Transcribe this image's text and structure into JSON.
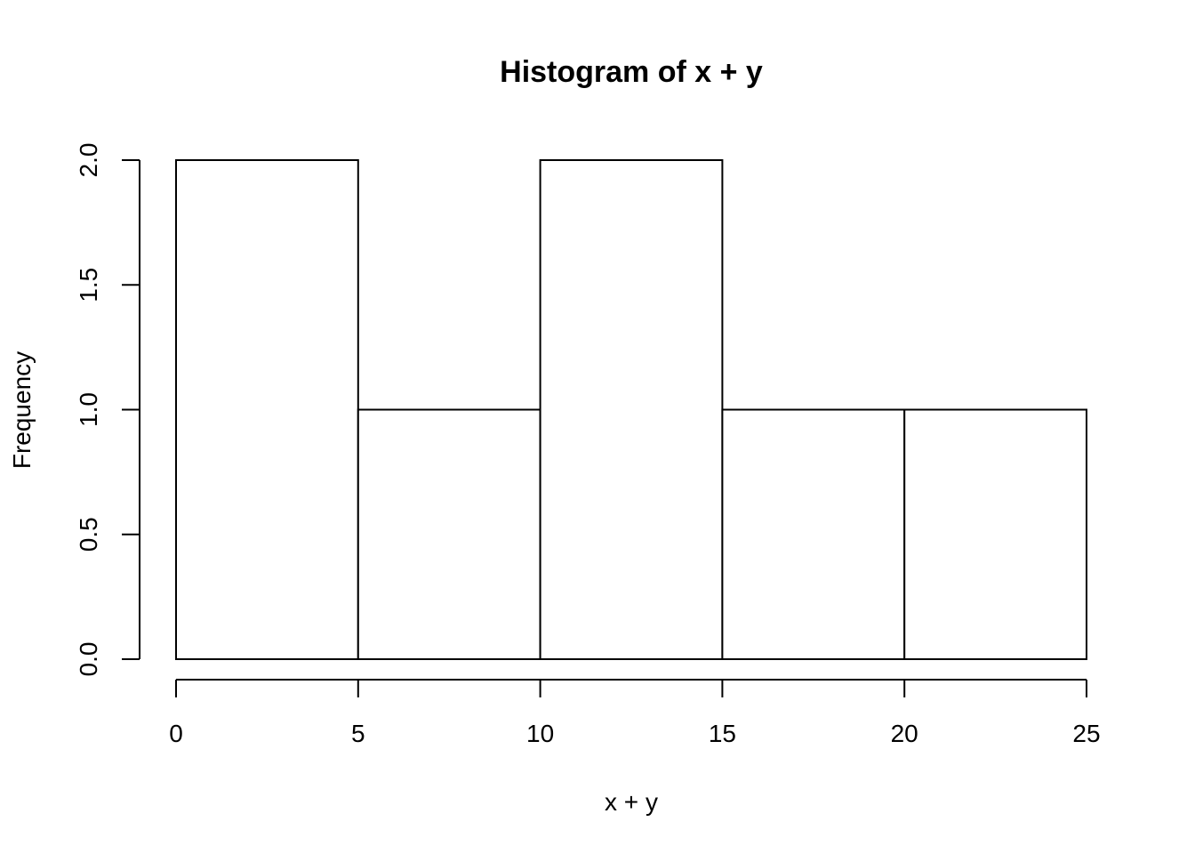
{
  "chart_data": {
    "type": "bar",
    "title": "Histogram of x + y",
    "xlabel": "x + y",
    "ylabel": "Frequency",
    "bins": [
      {
        "start": 0,
        "end": 5,
        "count": 2
      },
      {
        "start": 5,
        "end": 10,
        "count": 1
      },
      {
        "start": 10,
        "end": 15,
        "count": 2
      },
      {
        "start": 15,
        "end": 20,
        "count": 1
      },
      {
        "start": 20,
        "end": 25,
        "count": 1
      }
    ],
    "xlim": [
      0,
      25
    ],
    "ylim": [
      0,
      2
    ],
    "x_ticks": [
      0,
      5,
      10,
      15,
      20,
      25
    ],
    "x_tick_labels": [
      "0",
      "5",
      "10",
      "15",
      "20",
      "25"
    ],
    "y_ticks": [
      0,
      0.5,
      1,
      1.5,
      2
    ],
    "y_tick_labels": [
      "0.0",
      "0.5",
      "1.0",
      "1.5",
      "2.0"
    ],
    "grid": false,
    "legend": "none"
  }
}
